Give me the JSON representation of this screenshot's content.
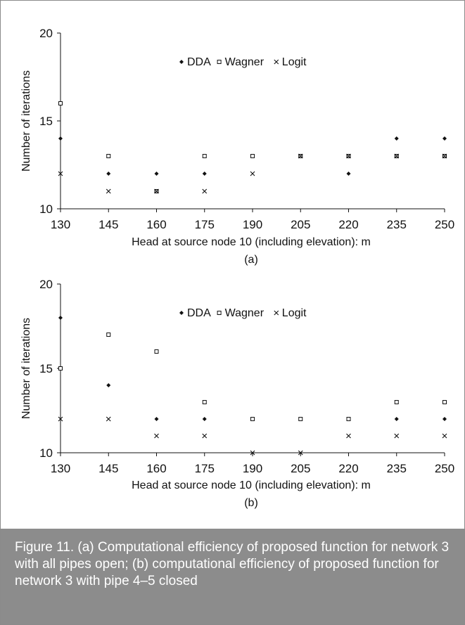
{
  "figure": {
    "caption": "Figure 11. (a) Computational efficiency of proposed function for network 3 with all pipes open; (b) computational efficiency of proposed function for network 3 with pipe 4–5 closed"
  },
  "chart_data": [
    {
      "type": "scatter",
      "panel_label": "(a)",
      "xlabel": "Head at source node 10 (including elevation): m",
      "ylabel": "Number of iterations",
      "x_ticks": [
        "130",
        "145",
        "160",
        "175",
        "190",
        "205",
        "220",
        "235",
        "250"
      ],
      "y_ticks": [
        "10",
        "15",
        "20"
      ],
      "xlim": [
        130,
        250
      ],
      "ylim": [
        10,
        20
      ],
      "legend_position": "top-center",
      "x": [
        130,
        145,
        160,
        175,
        190,
        205,
        220,
        235,
        250
      ],
      "series": [
        {
          "name": "DDA",
          "marker": "diamond",
          "values": [
            14,
            12,
            12,
            12,
            13,
            13,
            12,
            14,
            14
          ]
        },
        {
          "name": "Wagner",
          "marker": "square",
          "values": [
            16,
            13,
            11,
            13,
            13,
            13,
            13,
            13,
            13
          ]
        },
        {
          "name": "Logit",
          "marker": "x",
          "values": [
            12,
            11,
            11,
            11,
            12,
            13,
            13,
            13,
            13
          ]
        }
      ]
    },
    {
      "type": "scatter",
      "panel_label": "(b)",
      "xlabel": "Head at source node 10 (including elevation): m",
      "ylabel": "Number of iterations",
      "x_ticks": [
        "130",
        "145",
        "160",
        "175",
        "190",
        "205",
        "220",
        "235",
        "250"
      ],
      "y_ticks": [
        "10",
        "15",
        "20"
      ],
      "xlim": [
        130,
        250
      ],
      "ylim": [
        10,
        20
      ],
      "legend_position": "top-center",
      "x": [
        130,
        145,
        160,
        175,
        190,
        205,
        220,
        235,
        250
      ],
      "series": [
        {
          "name": "DDA",
          "marker": "diamond",
          "values": [
            18,
            14,
            12,
            12,
            12,
            12,
            12,
            12,
            12
          ]
        },
        {
          "name": "Wagner",
          "marker": "square",
          "values": [
            15,
            17,
            16,
            13,
            12,
            12,
            12,
            13,
            13
          ]
        },
        {
          "name": "Logit",
          "marker": "x",
          "values": [
            12,
            12,
            11,
            11,
            10,
            10,
            11,
            11,
            11
          ]
        }
      ]
    }
  ]
}
